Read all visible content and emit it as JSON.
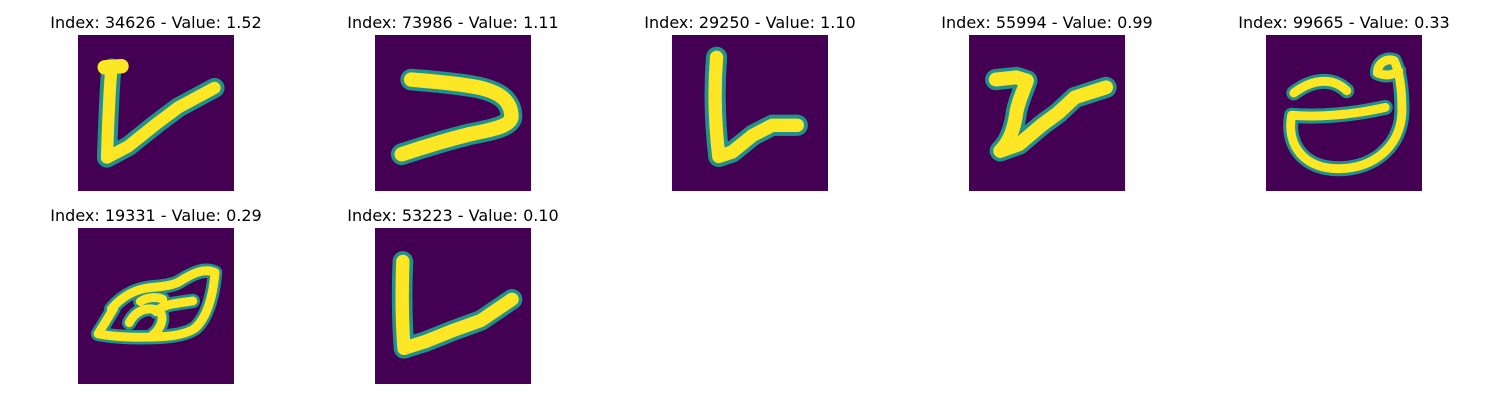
{
  "colors": {
    "background": "#440154",
    "mid_a": "#21918c",
    "mid_b": "#5ec962",
    "stroke": "#fde725",
    "page": "#ffffff"
  },
  "panels": [
    {
      "title": "Index: 34626 - Value: 1.52",
      "glyph": "v-tall-left-stroke"
    },
    {
      "title": "Index: 73986 - Value: 1.11",
      "glyph": "greater-than-hook"
    },
    {
      "title": "Index: 29250 - Value: 1.10",
      "glyph": "l-shape-short-foot"
    },
    {
      "title": "Index: 55994 - Value: 0.99",
      "glyph": "v-wavy-left-stroke"
    },
    {
      "title": "Index: 99665 - Value: 0.33",
      "glyph": "theta-loop"
    },
    {
      "title": "Index: 19331 - Value: 0.29",
      "glyph": "scribbled-loop"
    },
    {
      "title": "Index: 53223 - Value: 0.10",
      "glyph": "l-shape-long-foot"
    }
  ]
}
